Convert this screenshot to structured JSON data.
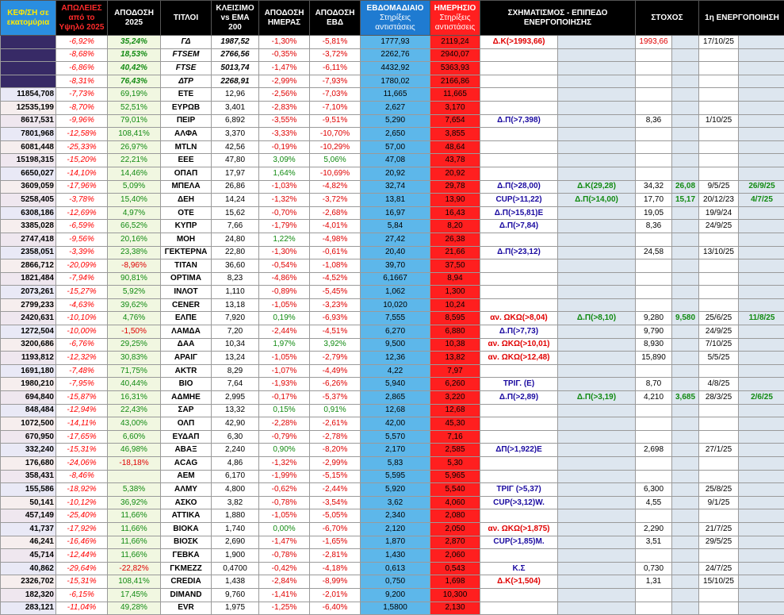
{
  "headers": {
    "cap": "ΚΕΦ/ΣΗ σε εκατομύρια",
    "loss": "ΑΠΩΛΕΙΕΣ από το Υψηλό 2025",
    "ytd": "ΑΠΟΔΟΣΗ 2025",
    "title": "ΤΙΤΛΟΙ",
    "close": "ΚΛΕΙΣΙΜΟ vs EMA 200",
    "day": "ΑΠΟΔΟΣΗ ΗΜΕΡΑΣ",
    "week": "ΑΠΟΔΟΣΗ ΕΒΔ",
    "weekly_main": "ΕΒΔΟΜΑΔΙΑΙΟ",
    "weekly_sub": "Στηρίξεις αντιστάσεις",
    "daily_main": "ΗΜΕΡΗΣΙΟ",
    "daily_sub": "Στηρίξεις αντιστάσεις",
    "pattern": "ΣΧΗΜΑΤΙΣΜΟΣ - ΕΠΙΠΕΔΟ ΕΝΕΡΓΟΠΟΙΗΣΗΣ",
    "target": "ΣΤΟΧΟΣ",
    "activation": "1η ΕΝΕΡΓΟΠΟΙΗΣΗ"
  },
  "rows": [
    [
      "",
      "-6,92%",
      "35,24%",
      "ΓΔ",
      "1987,52",
      "-1,30%",
      "-5,81%",
      "1777,93",
      "2119,24",
      "Δ.Κ(>1993,66)",
      "",
      "1993,66",
      "",
      "17/10/25",
      ""
    ],
    [
      "",
      "-8,68%",
      "18,53%",
      "FTSEM",
      "2766,56",
      "-0,35%",
      "-3,72%",
      "2262,76",
      "2940,07",
      "",
      "",
      "",
      "",
      "",
      ""
    ],
    [
      "",
      "-6,86%",
      "40,42%",
      "FTSE",
      "5013,74",
      "-1,47%",
      "-6,11%",
      "4432,92",
      "5363,93",
      "",
      "",
      "",
      "",
      "",
      ""
    ],
    [
      "",
      "-8,31%",
      "76,43%",
      "ΔΤΡ",
      "2268,91",
      "-2,99%",
      "-7,93%",
      "1780,02",
      "2166,86",
      "",
      "",
      "",
      "",
      "",
      ""
    ],
    [
      "11854,708",
      "-7,73%",
      "69,19%",
      "ΕΤΕ",
      "12,96",
      "-2,56%",
      "-7,03%",
      "11,665",
      "11,665",
      "",
      "",
      "",
      "",
      "",
      ""
    ],
    [
      "12535,199",
      "-8,70%",
      "52,51%",
      "ΕΥΡΩΒ",
      "3,401",
      "-2,83%",
      "-7,10%",
      "2,627",
      "3,170",
      "",
      "",
      "",
      "",
      "",
      ""
    ],
    [
      "8617,531",
      "-9,96%",
      "79,01%",
      "ΠΕΙΡ",
      "6,892",
      "-3,55%",
      "-9,51%",
      "5,290",
      "7,654",
      "Δ.Π(>7,398)",
      "",
      "8,36",
      "",
      "1/10/25",
      ""
    ],
    [
      "7801,968",
      "-12,58%",
      "108,41%",
      "ΑΛΦΑ",
      "3,370",
      "-3,33%",
      "-10,70%",
      "2,650",
      "3,855",
      "",
      "",
      "",
      "",
      "",
      ""
    ],
    [
      "6081,448",
      "-25,33%",
      "26,97%",
      "MTLN",
      "42,56",
      "-0,19%",
      "-10,29%",
      "57,00",
      "48,64",
      "",
      "",
      "",
      "",
      "",
      ""
    ],
    [
      "15198,315",
      "-15,20%",
      "22,21%",
      "ΕΕΕ",
      "47,80",
      "3,09%",
      "5,06%",
      "47,08",
      "43,78",
      "",
      "",
      "",
      "",
      "",
      ""
    ],
    [
      "6650,027",
      "-14,10%",
      "14,46%",
      "ΟΠΑΠ",
      "17,97",
      "1,64%",
      "-10,69%",
      "20,92",
      "20,92",
      "",
      "",
      "",
      "",
      "",
      ""
    ],
    [
      "3609,059",
      "-17,96%",
      "5,09%",
      "ΜΠΕΛΑ",
      "26,86",
      "-1,03%",
      "-4,82%",
      "32,74",
      "29,78",
      "Δ.Π(>28,00)",
      "Δ.Κ(29,28)",
      "34,32",
      "26,08",
      "9/5/25",
      "26/9/25"
    ],
    [
      "5258,405",
      "-3,78%",
      "15,40%",
      "ΔΕΗ",
      "14,24",
      "-1,32%",
      "-3,72%",
      "13,81",
      "13,90",
      "CUP(>11,22)",
      "Δ.Π(>14,00)",
      "17,70",
      "15,17",
      "20/12/23",
      "4/7/25"
    ],
    [
      "6308,186",
      "-12,69%",
      "4,97%",
      "ΟΤΕ",
      "15,62",
      "-0,70%",
      "-2,68%",
      "16,97",
      "16,43",
      "Δ.Π(>15,81)Ε",
      "",
      "19,05",
      "",
      "19/9/24",
      ""
    ],
    [
      "3385,028",
      "-6,59%",
      "66,52%",
      "ΚΥΠΡ",
      "7,66",
      "-1,79%",
      "-4,01%",
      "5,84",
      "8,20",
      "Δ.Π(>7,84)",
      "",
      "8,36",
      "",
      "24/9/25",
      ""
    ],
    [
      "2747,418",
      "-9,56%",
      "20,16%",
      "ΜΟΗ",
      "24,80",
      "1,22%",
      "-4,98%",
      "27,42",
      "26,38",
      "",
      "",
      "",
      "",
      "",
      ""
    ],
    [
      "2358,051",
      "-3,39%",
      "23,38%",
      "ΓΕΚΤΕΡΝΑ",
      "22,80",
      "-1,30%",
      "-0,61%",
      "20,40",
      "21,66",
      "Δ.Π(>23,12)",
      "",
      "24,58",
      "",
      "13/10/25",
      ""
    ],
    [
      "2866,712",
      "-20,09%",
      "-8,96%",
      "ΤΙΤΑΝ",
      "36,60",
      "-0,54%",
      "-1,08%",
      "39,70",
      "37,50",
      "",
      "",
      "",
      "",
      "",
      ""
    ],
    [
      "1821,484",
      "-7,94%",
      "90,81%",
      "ΟΡΤΙΜΑ",
      "8,23",
      "-4,86%",
      "-4,52%",
      "6,1667",
      "8,94",
      "",
      "",
      "",
      "",
      "",
      ""
    ],
    [
      "2073,261",
      "-15,27%",
      "5,92%",
      "ΙΝΛΟΤ",
      "1,110",
      "-0,89%",
      "-5,45%",
      "1,062",
      "1,300",
      "",
      "",
      "",
      "",
      "",
      ""
    ],
    [
      "2799,233",
      "-4,63%",
      "39,62%",
      "CENER",
      "13,18",
      "-1,05%",
      "-3,23%",
      "10,020",
      "10,24",
      "",
      "",
      "",
      "",
      "",
      ""
    ],
    [
      "2420,631",
      "-10,10%",
      "4,76%",
      "ΕΛΠΕ",
      "7,920",
      "0,19%",
      "-6,93%",
      "7,555",
      "8,595",
      "αν. ΩΚΩ(>8,04)",
      "Δ.Π(>8,10)",
      "9,280",
      "9,580",
      "25/6/25",
      "11/8/25"
    ],
    [
      "1272,504",
      "-10,00%",
      "-1,50%",
      "ΛΑΜΔΑ",
      "7,20",
      "-2,44%",
      "-4,51%",
      "6,270",
      "6,880",
      "Δ.Π(>7,73)",
      "",
      "9,790",
      "",
      "24/9/25",
      ""
    ],
    [
      "3200,686",
      "-6,76%",
      "29,25%",
      "ΔΑΑ",
      "10,34",
      "1,97%",
      "3,92%",
      "9,500",
      "10,38",
      "αν. ΩΚΩ(>10,01)",
      "",
      "8,930",
      "",
      "7/10/25",
      ""
    ],
    [
      "1193,812",
      "-12,32%",
      "30,83%",
      "ΑΡΑΙΓ",
      "13,24",
      "-1,05%",
      "-2,79%",
      "12,36",
      "13,82",
      "αν. ΩΚΩ(>12,48)",
      "",
      "15,890",
      "",
      "5/5/25",
      ""
    ],
    [
      "1691,180",
      "-7,48%",
      "71,75%",
      "ΑΚΤR",
      "8,29",
      "-1,07%",
      "-4,49%",
      "4,22",
      "7,97",
      "",
      "",
      "",
      "",
      "",
      ""
    ],
    [
      "1980,210",
      "-7,95%",
      "40,44%",
      "ΒΙΟ",
      "7,64",
      "-1,93%",
      "-6,26%",
      "5,940",
      "6,260",
      "ΤΡΙΓ. (Ε)",
      "",
      "8,70",
      "",
      "4/8/25",
      ""
    ],
    [
      "694,840",
      "-15,87%",
      "16,31%",
      "ΑΔΜΗΕ",
      "2,995",
      "-0,17%",
      "-5,37%",
      "2,865",
      "3,220",
      "Δ.Π(>2,89)",
      "Δ.Π(>3,19)",
      "4,210",
      "3,685",
      "28/3/25",
      "2/6/25"
    ],
    [
      "848,484",
      "-12,94%",
      "22,43%",
      "ΣΑΡ",
      "13,32",
      "0,15%",
      "0,91%",
      "12,68",
      "12,68",
      "",
      "",
      "",
      "",
      "",
      ""
    ],
    [
      "1072,500",
      "-14,11%",
      "43,00%",
      "ΟΛΠ",
      "42,90",
      "-2,28%",
      "-2,61%",
      "42,00",
      "45,30",
      "",
      "",
      "",
      "",
      "",
      ""
    ],
    [
      "670,950",
      "-17,65%",
      "6,60%",
      "ΕΥΔΑΠ",
      "6,30",
      "-0,79%",
      "-2,78%",
      "5,570",
      "7,16",
      "",
      "",
      "",
      "",
      "",
      ""
    ],
    [
      "332,240",
      "-15,31%",
      "46,98%",
      "ΑΒΑΞ",
      "2,240",
      "0,90%",
      "-8,20%",
      "2,170",
      "2,585",
      "ΔΠ(>1,922)Ε",
      "",
      "2,698",
      "",
      "27/1/25",
      ""
    ],
    [
      "176,680",
      "-24,06%",
      "-18,18%",
      "ACAG",
      "4,86",
      "-1,32%",
      "-2,99%",
      "5,83",
      "5,30",
      "",
      "",
      "",
      "",
      "",
      ""
    ],
    [
      "358,431",
      "-8,46%",
      "",
      "ΑΕΜ",
      "6,170",
      "-1,99%",
      "-5,15%",
      "5,595",
      "5,965",
      "",
      "",
      "",
      "",
      "",
      ""
    ],
    [
      "155,586",
      "-18,92%",
      "5,38%",
      "ΑΛΜΥ",
      "4,800",
      "-0,62%",
      "-2,44%",
      "5,920",
      "5,540",
      "ΤΡΙΓ (>5,37)",
      "",
      "6,300",
      "",
      "25/8/25",
      ""
    ],
    [
      "50,141",
      "-10,12%",
      "36,92%",
      "ΑΣΚΟ",
      "3,82",
      "-0,78%",
      "-3,54%",
      "3,62",
      "4,060",
      "CUP(>3,12)W.",
      "",
      "4,55",
      "",
      "9/1/25",
      ""
    ],
    [
      "457,149",
      "-25,40%",
      "11,66%",
      "ΑΤΤΙΚΑ",
      "1,880",
      "-1,05%",
      "-5,05%",
      "2,340",
      "2,080",
      "",
      "",
      "",
      "",
      "",
      ""
    ],
    [
      "41,737",
      "-17,92%",
      "11,66%",
      "ΒΙΟΚΑ",
      "1,740",
      "0,00%",
      "-6,70%",
      "2,120",
      "2,050",
      "αν. ΩΚΩ(>1,875)",
      "",
      "2,290",
      "",
      "21/7/25",
      ""
    ],
    [
      "46,241",
      "-16,46%",
      "11,66%",
      "ΒΙΟΣΚ",
      "2,690",
      "-1,47%",
      "-1,65%",
      "1,870",
      "2,870",
      "CUP(>1,85)M.",
      "",
      "3,51",
      "",
      "29/5/25",
      ""
    ],
    [
      "45,714",
      "-12,44%",
      "11,66%",
      "ΓΕΒΚΑ",
      "1,900",
      "-0,78%",
      "-2,81%",
      "1,430",
      "2,060",
      "",
      "",
      "",
      "",
      "",
      ""
    ],
    [
      "40,862",
      "-29,64%",
      "-22,82%",
      "ΓΚΜΕΖΖ",
      "0,4700",
      "-0,42%",
      "-4,18%",
      "0,613",
      "0,543",
      "Κ.Σ",
      "",
      "0,730",
      "",
      "24/7/25",
      ""
    ],
    [
      "2326,702",
      "-15,31%",
      "108,41%",
      "CREDIA",
      "1,438",
      "-2,84%",
      "-8,99%",
      "0,750",
      "1,698",
      "Δ.Κ(>1,504)",
      "",
      "1,31",
      "",
      "15/10/25",
      ""
    ],
    [
      "182,320",
      "-6,15%",
      "17,45%",
      "DIMAND",
      "9,760",
      "-1,41%",
      "-2,01%",
      "9,200",
      "10,300",
      "",
      "",
      "",
      "",
      "",
      ""
    ],
    [
      "283,121",
      "-11,04%",
      "49,28%",
      "EVR",
      "1,975",
      "-1,25%",
      "-6,40%",
      "1,5800",
      "2,130",
      "",
      "",
      "",
      "",
      "",
      ""
    ]
  ]
}
